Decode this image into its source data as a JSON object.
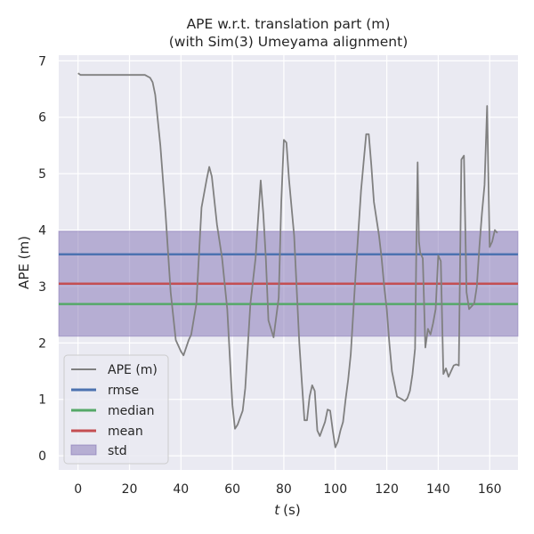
{
  "chart_data": {
    "type": "line",
    "title": "APE w.r.t. translation part (m)",
    "subtitle": "(with Sim(3) Umeyama alignment)",
    "xlabel_var": "t",
    "xlabel_unit": "(s)",
    "ylabel": "APE (m)",
    "xlim": [
      -7.5,
      171
    ],
    "ylim": [
      -0.25,
      7.1
    ],
    "xticks": [
      0,
      20,
      40,
      60,
      80,
      100,
      120,
      140,
      160
    ],
    "yticks": [
      0,
      1,
      2,
      3,
      4,
      5,
      6,
      7
    ],
    "grid": true,
    "legend_position": "lower-left",
    "series": [
      {
        "name": "APE (m)",
        "color": "#808080",
        "x": [
          0,
          1,
          5,
          10,
          15,
          20,
          24,
          26,
          28,
          29,
          30,
          32,
          34,
          36,
          38,
          40,
          41,
          43,
          44,
          46,
          48,
          50,
          51,
          52,
          54,
          56,
          58,
          60,
          61,
          62,
          64,
          65,
          67,
          69,
          70,
          71,
          72,
          73,
          74,
          76,
          78,
          79,
          80,
          81,
          82,
          84,
          86,
          87,
          88,
          89,
          90,
          91,
          92,
          93,
          94,
          96,
          97,
          98,
          99,
          100,
          101,
          102,
          103,
          104,
          105,
          106,
          108,
          110,
          111,
          112,
          113,
          114,
          115,
          117,
          118,
          119,
          120,
          121,
          122,
          124,
          126,
          127,
          128,
          129,
          130,
          131,
          131.5,
          132,
          132.5,
          133,
          134,
          135,
          136,
          137,
          138,
          139,
          140,
          141,
          142,
          143,
          144,
          145,
          146,
          147,
          148,
          149,
          150,
          151,
          152,
          153,
          154,
          155,
          156,
          157,
          158,
          159,
          160,
          161,
          162,
          163
        ],
        "y": [
          6.78,
          6.75,
          6.75,
          6.75,
          6.75,
          6.75,
          6.75,
          6.75,
          6.7,
          6.62,
          6.4,
          5.5,
          4.3,
          2.9,
          2.05,
          1.85,
          1.78,
          2.05,
          2.15,
          2.7,
          4.4,
          4.9,
          5.12,
          4.95,
          4.1,
          3.5,
          2.6,
          0.9,
          0.48,
          0.55,
          0.8,
          1.2,
          2.7,
          3.5,
          4.2,
          4.88,
          4.3,
          3.5,
          2.4,
          2.1,
          2.8,
          4.5,
          5.6,
          5.55,
          4.9,
          3.9,
          2.0,
          1.3,
          0.63,
          0.63,
          1.05,
          1.25,
          1.15,
          0.45,
          0.35,
          0.6,
          0.82,
          0.8,
          0.45,
          0.15,
          0.25,
          0.45,
          0.6,
          1.0,
          1.35,
          1.8,
          3.3,
          4.7,
          5.2,
          5.7,
          5.7,
          5.15,
          4.5,
          3.9,
          3.5,
          3.0,
          2.6,
          2.0,
          1.5,
          1.05,
          1.0,
          0.97,
          1.02,
          1.15,
          1.45,
          1.9,
          3.7,
          5.2,
          3.8,
          3.6,
          3.5,
          1.92,
          2.25,
          2.15,
          2.35,
          2.6,
          3.55,
          3.45,
          1.45,
          1.55,
          1.4,
          1.5,
          1.6,
          1.62,
          1.6,
          5.25,
          5.32,
          2.9,
          2.6,
          2.65,
          2.7,
          3.0,
          3.7,
          4.3,
          4.8,
          6.2,
          3.7,
          3.8,
          4.0,
          3.95
        ]
      }
    ],
    "stats": {
      "rmse": {
        "name": "rmse",
        "value": 3.57,
        "color": "#4c72b0"
      },
      "median": {
        "name": "median",
        "value": 2.69,
        "color": "#55a868"
      },
      "mean": {
        "name": "mean",
        "value": 3.05,
        "color": "#c44e52"
      },
      "std": {
        "name": "std",
        "lower": 2.12,
        "upper": 3.98,
        "color": "#8172b3"
      }
    }
  },
  "theme": {
    "plot_background": "#eaeaf2",
    "grid_color": "#ffffff",
    "text_color": "#262626"
  }
}
